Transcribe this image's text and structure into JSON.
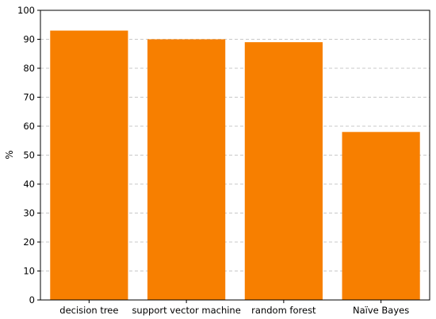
{
  "chart_data": {
    "type": "bar",
    "title": "",
    "xlabel": "",
    "ylabel": "%",
    "categories": [
      "decision tree",
      "support vector machine",
      "random forest",
      "Naïve Bayes"
    ],
    "values": [
      93,
      90,
      89,
      58
    ],
    "ylim": [
      0,
      100
    ],
    "yticks": [
      "0",
      "10",
      "20",
      "30",
      "40",
      "50",
      "60",
      "70",
      "80",
      "90",
      "100"
    ],
    "grid": "y-dashed",
    "bar_color": "#f77f00",
    "legend": "none"
  }
}
